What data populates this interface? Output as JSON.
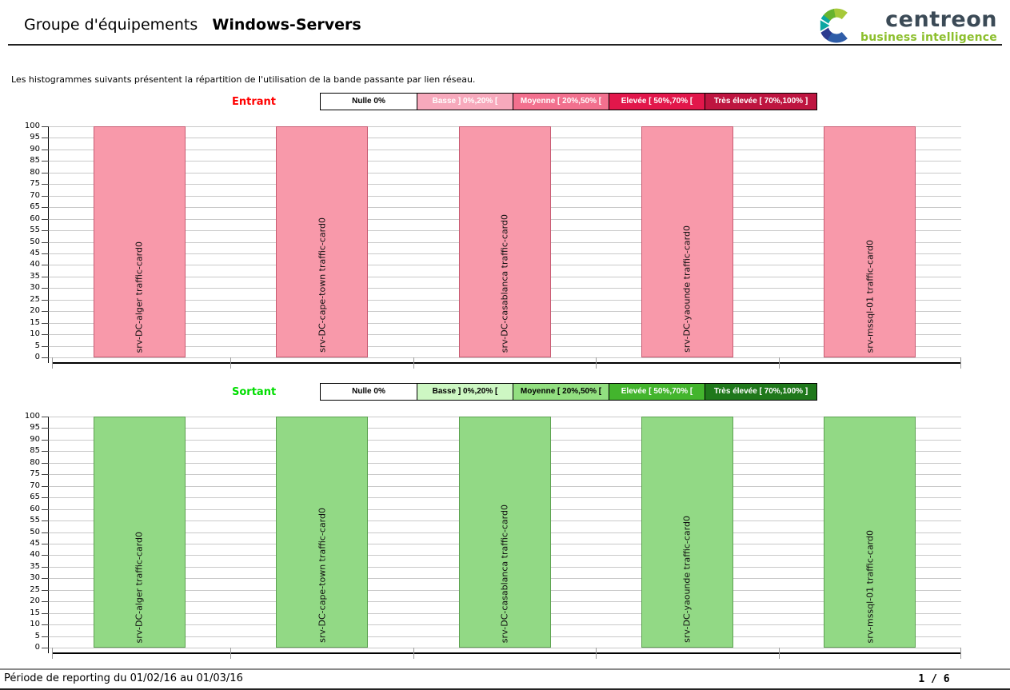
{
  "header": {
    "title_prefix": "Groupe d'équipements",
    "title_group": "Windows-Servers",
    "logo": {
      "brand": "centreon",
      "tagline": "business intelligence",
      "brand_color": "#3B4A56",
      "tagline_color": "#8CBF2C",
      "icon_colors": [
        "#A6C939",
        "#67B32E",
        "#0AA7A2",
        "#2A3B8F",
        "#2F5DA8"
      ]
    }
  },
  "intro": "Les histogrammes suivants présentent la répartition de l'utilisation de la bande passante par lien réseau.",
  "chart_data": [
    {
      "type": "bar",
      "direction_label": "Entrant",
      "direction_color": "#FF0000",
      "legend": [
        {
          "label": "Nulle 0%",
          "bg": "#FFFFFF",
          "fg": "#000000"
        },
        {
          "label": "Basse ] 0%,20% [",
          "bg": "#F7A9BC",
          "fg": "#FFFFFF"
        },
        {
          "label": "Moyenne [ 20%,50% [",
          "bg": "#F2708E",
          "fg": "#FFFFFF"
        },
        {
          "label": "Elevée [ 50%,70% [",
          "bg": "#E2174B",
          "fg": "#FFFFFF"
        },
        {
          "label": "Très élevée [ 70%,100% ]",
          "bg": "#BE1540",
          "fg": "#FFFFFF"
        }
      ],
      "categories": [
        "srv-DC-alger traffic-card0",
        "srv-DC-cape-town traffic-card0",
        "srv-DC-casablanca traffic-card0",
        "srv-DC-yaounde traffic-card0",
        "srv-mssql-01 traffic-card0"
      ],
      "values": [
        100,
        100,
        100,
        100,
        100
      ],
      "bar_fill": "#F899AA",
      "bar_border": "#C85C73",
      "ylim": [
        0,
        100
      ],
      "ytick_step": 5,
      "grid": true,
      "legend_position": "top"
    },
    {
      "type": "bar",
      "direction_label": "Sortant",
      "direction_color": "#00DD00",
      "legend": [
        {
          "label": "Nulle 0%",
          "bg": "#FFFFFF",
          "fg": "#000000"
        },
        {
          "label": "Basse ] 0%,20% [",
          "bg": "#CDF7C3",
          "fg": "#000000"
        },
        {
          "label": "Moyenne [ 20%,50% [",
          "bg": "#92DF80",
          "fg": "#000000"
        },
        {
          "label": "Elevée [ 50%,70% [",
          "bg": "#43B52D",
          "fg": "#FFFFFF"
        },
        {
          "label": "Très élevée [ 70%,100% ]",
          "bg": "#1F781B",
          "fg": "#FFFFFF"
        }
      ],
      "categories": [
        "srv-DC-alger traffic-card0",
        "srv-DC-cape-town traffic-card0",
        "srv-DC-casablanca traffic-card0",
        "srv-DC-yaounde traffic-card0",
        "srv-mssql-01 traffic-card0"
      ],
      "values": [
        100,
        100,
        100,
        100,
        100
      ],
      "bar_fill": "#92D985",
      "bar_border": "#5DA251",
      "ylim": [
        0,
        100
      ],
      "ytick_step": 5,
      "grid": true,
      "legend_position": "top"
    }
  ],
  "footer": {
    "period": "Période de reporting du 01/02/16 au 01/03/16",
    "page": "1 / 6"
  }
}
